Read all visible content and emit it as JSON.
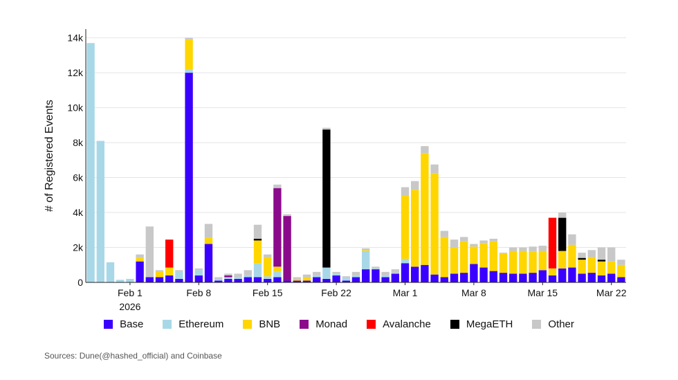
{
  "chart_data": {
    "type": "bar",
    "stacked": true,
    "ylabel": "# of Registered Events",
    "ylim": [
      0,
      14500
    ],
    "y_ticks": [
      0,
      2000,
      4000,
      6000,
      8000,
      10000,
      12000,
      14000
    ],
    "y_tick_labels": [
      "0",
      "2k",
      "4k",
      "6k",
      "8k",
      "10k",
      "12k",
      "14k"
    ],
    "x_ticks": [
      {
        "day": 4,
        "label": "Feb 1",
        "sublabel": "2026"
      },
      {
        "day": 11,
        "label": "Feb 8"
      },
      {
        "day": 18,
        "label": "Feb 15"
      },
      {
        "day": 25,
        "label": "Feb 22"
      },
      {
        "day": 32,
        "label": "Mar 1"
      },
      {
        "day": 39,
        "label": "Mar 8"
      },
      {
        "day": 46,
        "label": "Mar 15"
      },
      {
        "day": 53,
        "label": "Mar 22"
      }
    ],
    "grid": true,
    "legend_position": "bottom",
    "series": [
      {
        "name": "Base",
        "color": "#3a00ff",
        "values": [
          0,
          0,
          0,
          0,
          0,
          1200,
          300,
          300,
          400,
          200,
          12000,
          400,
          2200,
          100,
          200,
          200,
          300,
          300,
          200,
          300,
          100,
          100,
          100,
          300,
          200,
          400,
          100,
          300,
          750,
          750,
          300,
          500,
          1100,
          900,
          1000,
          450,
          300,
          500,
          550,
          1050,
          850,
          650,
          550,
          500,
          500,
          550,
          700,
          400,
          800,
          850,
          500,
          550,
          400,
          500,
          300
        ]
      },
      {
        "name": "Ethereum",
        "color": "#a8d8e8",
        "values": [
          13700,
          8100,
          1150,
          150,
          200,
          0,
          0,
          0,
          0,
          400,
          200,
          300,
          0,
          100,
          100,
          100,
          100,
          800,
          150,
          300,
          0,
          0,
          0,
          100,
          650,
          100,
          150,
          100,
          1050,
          50,
          100,
          50,
          250,
          0,
          0,
          0,
          0,
          0,
          0,
          0,
          0,
          0,
          0,
          0,
          0,
          0,
          0,
          0,
          0,
          0,
          0,
          0,
          0,
          0,
          0
        ]
      },
      {
        "name": "BNB",
        "color": "#ffd600",
        "values": [
          0,
          0,
          0,
          0,
          0,
          200,
          0,
          300,
          450,
          0,
          1700,
          0,
          350,
          0,
          0,
          0,
          0,
          1300,
          1100,
          300,
          0,
          100,
          200,
          0,
          0,
          0,
          0,
          0,
          50,
          0,
          0,
          0,
          3600,
          4400,
          6400,
          5800,
          2300,
          1500,
          1800,
          1000,
          1400,
          1700,
          1100,
          1300,
          1300,
          1200,
          1100,
          400,
          1000,
          1300,
          800,
          900,
          800,
          700,
          700
        ]
      },
      {
        "name": "Monad",
        "color": "#8b0a8b",
        "values": [
          0,
          0,
          0,
          0,
          0,
          0,
          0,
          0,
          0,
          0,
          0,
          0,
          0,
          0,
          100,
          0,
          0,
          0,
          0,
          4500,
          3700,
          0,
          0,
          0,
          0,
          0,
          0,
          0,
          0,
          0,
          0,
          0,
          0,
          0,
          0,
          0,
          0,
          0,
          0,
          0,
          0,
          0,
          0,
          0,
          0,
          0,
          0,
          0,
          0,
          0,
          0,
          0,
          0,
          0,
          0
        ]
      },
      {
        "name": "Avalanche",
        "color": "#ff0000",
        "values": [
          0,
          0,
          0,
          0,
          0,
          0,
          0,
          0,
          1600,
          0,
          0,
          0,
          0,
          0,
          0,
          0,
          0,
          0,
          0,
          0,
          0,
          0,
          0,
          0,
          0,
          0,
          0,
          0,
          0,
          0,
          0,
          0,
          0,
          0,
          0,
          0,
          0,
          0,
          0,
          0,
          0,
          0,
          0,
          0,
          0,
          0,
          0,
          2900,
          0,
          0,
          0,
          0,
          0,
          0,
          0
        ]
      },
      {
        "name": "MegaETH",
        "color": "#000000",
        "values": [
          0,
          0,
          0,
          0,
          0,
          0,
          0,
          0,
          0,
          0,
          0,
          0,
          0,
          0,
          0,
          0,
          0,
          100,
          0,
          0,
          0,
          0,
          0,
          0,
          7900,
          0,
          0,
          0,
          0,
          0,
          0,
          0,
          0,
          0,
          0,
          0,
          0,
          0,
          0,
          0,
          0,
          0,
          0,
          0,
          0,
          0,
          0,
          0,
          1900,
          0,
          100,
          0,
          100,
          0,
          0
        ]
      },
      {
        "name": "Other",
        "color": "#c8c8c8",
        "values": [
          0,
          0,
          0,
          0,
          0,
          200,
          2900,
          100,
          0,
          100,
          100,
          100,
          800,
          100,
          100,
          200,
          300,
          800,
          150,
          200,
          100,
          100,
          150,
          200,
          100,
          100,
          100,
          200,
          100,
          100,
          200,
          200,
          500,
          500,
          400,
          500,
          350,
          450,
          250,
          150,
          150,
          150,
          50,
          200,
          200,
          300,
          300,
          0,
          300,
          600,
          300,
          400,
          700,
          800,
          300
        ]
      }
    ]
  },
  "legend": {
    "items": [
      {
        "label": "Base",
        "color": "#3a00ff"
      },
      {
        "label": "Ethereum",
        "color": "#a8d8e8"
      },
      {
        "label": "BNB",
        "color": "#ffd600"
      },
      {
        "label": "Monad",
        "color": "#8b0a8b"
      },
      {
        "label": "Avalanche",
        "color": "#ff0000"
      },
      {
        "label": "MegaETH",
        "color": "#000000"
      },
      {
        "label": "Other",
        "color": "#c8c8c8"
      }
    ]
  },
  "source": "Sources: Dune(@hashed_official) and Coinbase"
}
